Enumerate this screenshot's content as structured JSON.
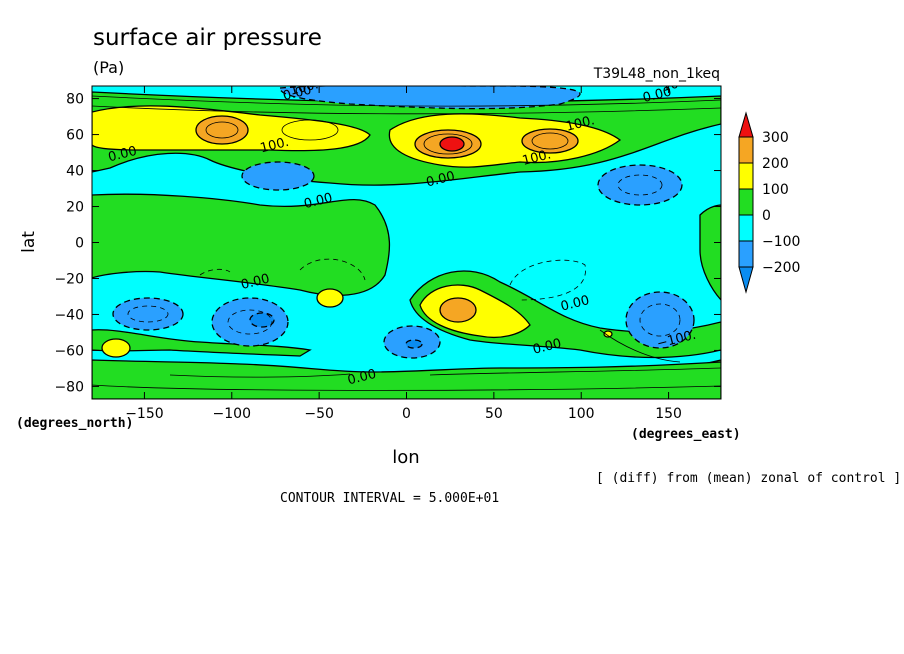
{
  "chart_data": {
    "type": "heatmap",
    "title": "surface air pressure",
    "units": "(Pa)",
    "experiment": "T39L48_non_1keq",
    "xlabel": "lon",
    "ylabel": "lat",
    "x_units": "(degrees_east)",
    "y_units": "(degrees_north)",
    "xlim": [
      -180,
      180
    ],
    "ylim": [
      -87,
      87
    ],
    "x_ticks": [
      "−150",
      "−100",
      "−50",
      "0",
      "50",
      "100",
      "150"
    ],
    "x_tick_values": [
      -150,
      -100,
      -50,
      0,
      50,
      100,
      150
    ],
    "y_ticks": [
      "80",
      "60",
      "40",
      "20",
      "0",
      "−20",
      "−40",
      "−60",
      "−80"
    ],
    "y_tick_values": [
      80,
      60,
      40,
      20,
      0,
      -20,
      -40,
      -60,
      -80
    ],
    "colorbar": {
      "labels": [
        "300",
        "200",
        "100",
        "0",
        "−100",
        "−200"
      ],
      "levels": [
        -300,
        -200,
        -150,
        -100,
        -50,
        0,
        50,
        100,
        150,
        200,
        300
      ],
      "colors": {
        "below_-200": "#0a8cf0",
        "-200_-100": "#2aa0ff",
        "-100_0": "#00ffff",
        "0_100": "#22dd22",
        "100_200": "#ffff00",
        "200_300": "#f5a623",
        "above_300": "#ee1111"
      }
    },
    "contour_labels": [
      {
        "text": "100.",
        "lon": -58,
        "lat": 84
      },
      {
        "text": "0.00",
        "lon": -62,
        "lat": 81
      },
      {
        "text": "100.",
        "lon": 155,
        "lat": 86
      },
      {
        "text": "0.00",
        "lon": 144,
        "lat": 80
      },
      {
        "text": "100.",
        "lon": 100,
        "lat": 64
      },
      {
        "text": "100.",
        "lon": -75,
        "lat": 52
      },
      {
        "text": "100.",
        "lon": 75,
        "lat": 45
      },
      {
        "text": "0.00",
        "lon": -162,
        "lat": 47
      },
      {
        "text": "0.00",
        "lon": 20,
        "lat": 33
      },
      {
        "text": "0.00",
        "lon": -50,
        "lat": 21
      },
      {
        "text": "0.00",
        "lon": -86,
        "lat": -24
      },
      {
        "text": "0.00",
        "lon": 97,
        "lat": -36
      },
      {
        "text": "−100.",
        "lon": 155,
        "lat": -56
      },
      {
        "text": "0.00",
        "lon": 81,
        "lat": -60
      },
      {
        "text": "0.00",
        "lon": -25,
        "lat": -77
      }
    ],
    "anomaly_centers": [
      {
        "lon": -100,
        "lat": 60,
        "value": 200
      },
      {
        "lon": 25,
        "lat": 55,
        "value": 300
      },
      {
        "lon": 80,
        "lat": 57,
        "value": 200
      },
      {
        "lon": -75,
        "lat": 37,
        "value": -200
      },
      {
        "lon": 130,
        "lat": 32,
        "value": -200
      },
      {
        "lon": 60,
        "lat": 82,
        "value": -200
      },
      {
        "lon": 30,
        "lat": -37,
        "value": 200
      },
      {
        "lon": -45,
        "lat": -30,
        "value": 100
      },
      {
        "lon": -165,
        "lat": -58,
        "value": 100
      },
      {
        "lon": -82,
        "lat": -45,
        "value": -200
      },
      {
        "lon": -140,
        "lat": -36,
        "value": -200
      },
      {
        "lon": 0,
        "lat": -55,
        "value": -200
      },
      {
        "lon": 140,
        "lat": -45,
        "value": -200
      }
    ],
    "annotation": "[ (diff) from (mean) zonal of control ]",
    "contour_interval": "CONTOUR INTERVAL = 5.000E+01"
  }
}
